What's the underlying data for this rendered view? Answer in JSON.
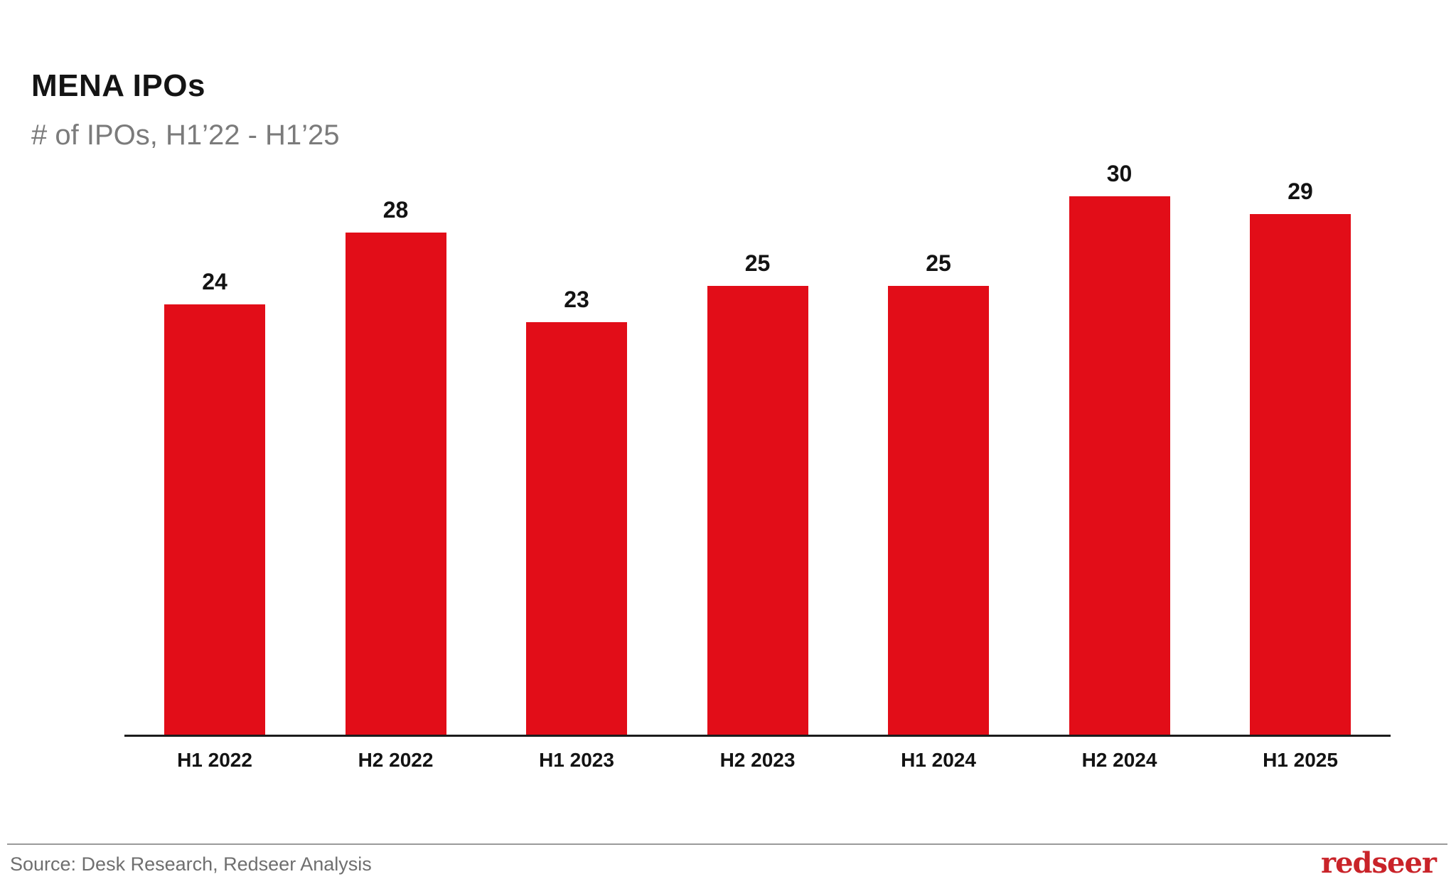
{
  "header": {
    "title": "MENA IPOs",
    "subtitle": "# of IPOs, H1’22 - H1’25"
  },
  "chart_data": {
    "type": "bar",
    "title": "MENA IPOs",
    "subtitle": "# of IPOs, H1’22 - H1’25",
    "categories": [
      "H1 2022",
      "H2 2022",
      "H1 2023",
      "H2 2023",
      "H1 2024",
      "H2 2024",
      "H1 2025"
    ],
    "values": [
      24,
      28,
      23,
      25,
      25,
      30,
      29
    ],
    "xlabel": "",
    "ylabel": "",
    "ylim": [
      0,
      30
    ],
    "grid": false,
    "legend": false,
    "value_labels": true,
    "bar_color": "#E20D18",
    "axis_color": "#1C1C1C",
    "label_color": "#131313"
  },
  "footer": {
    "source": "Source: Desk Research, Redseer Analysis",
    "logo_text": "redseer",
    "logo_color": "#C92329"
  }
}
